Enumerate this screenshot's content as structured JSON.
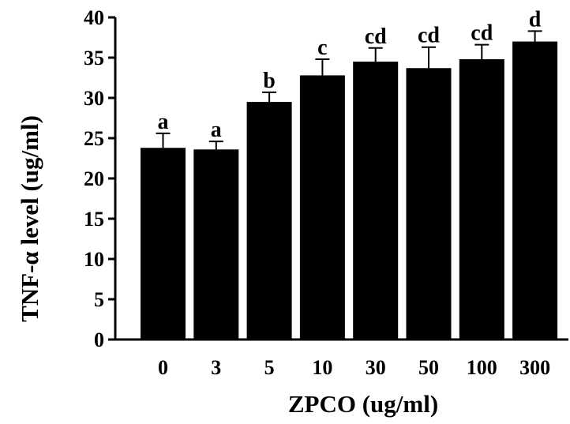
{
  "chart_data": {
    "type": "bar",
    "xlabel": "ZPCO (ug/ml)",
    "ylabel": "TNF-α level (ug/ml)",
    "ylim": [
      0,
      40
    ],
    "yticks": [
      0,
      5,
      10,
      15,
      20,
      25,
      30,
      35,
      40
    ],
    "categories": [
      "0",
      "3",
      "5",
      "10",
      "30",
      "50",
      "100",
      "300"
    ],
    "values": [
      23.8,
      23.6,
      29.5,
      32.8,
      34.5,
      33.7,
      34.8,
      37.0
    ],
    "errors": [
      1.8,
      1.0,
      1.2,
      2.0,
      1.7,
      2.6,
      1.8,
      1.3
    ],
    "significance_labels": [
      "a",
      "a",
      "b",
      "c",
      "cd",
      "cd",
      "cd",
      "d"
    ],
    "bar_color": "#000000",
    "grid": false,
    "legend": "none"
  }
}
